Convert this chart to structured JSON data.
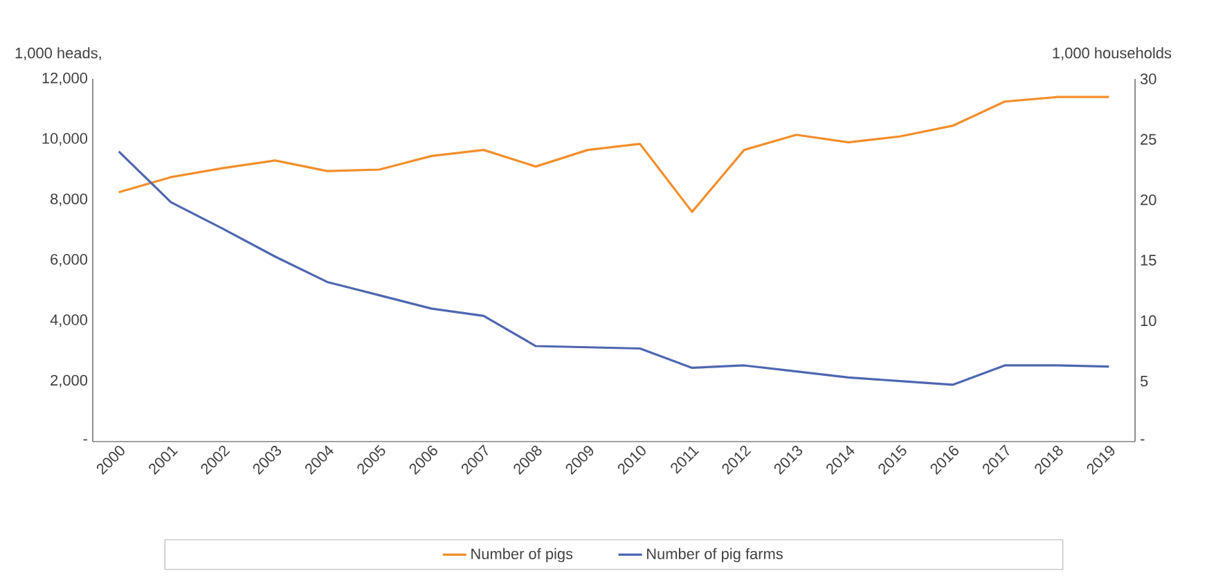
{
  "chart_data": {
    "type": "line",
    "categories": [
      "2000",
      "2001",
      "2002",
      "2003",
      "2004",
      "2005",
      "2006",
      "2007",
      "2008",
      "2009",
      "2010",
      "2011",
      "2012",
      "2013",
      "2014",
      "2015",
      "2016",
      "2017",
      "2018",
      "2019"
    ],
    "ylabel": "1,000 heads,",
    "y2label": "1,000 households",
    "series": [
      {
        "name": "Number of pigs",
        "color": "#f28e2b",
        "values": [
          8250,
          8750,
          9050,
          9300,
          8950,
          9000,
          9450,
          9650,
          9100,
          9650,
          9850,
          7600,
          9650,
          10150,
          9900,
          10100,
          10450,
          11250,
          11400,
          11400
        ]
      },
      {
        "name": "Number of pig farms",
        "color": "#4e66b0",
        "axis": "y2",
        "values": [
          24.0,
          19.8,
          17.6,
          15.3,
          13.2,
          12.1,
          11.0,
          10.4,
          7.9,
          7.8,
          7.7,
          6.1,
          6.3,
          5.8,
          5.3,
          5.0,
          4.7,
          6.3,
          6.3,
          6.2
        ]
      }
    ],
    "ylim": [
      0,
      12000
    ],
    "yticks": [
      {
        "value": 0,
        "label": "-"
      },
      {
        "value": 2000,
        "label": "2,000"
      },
      {
        "value": 4000,
        "label": "4,000"
      },
      {
        "value": 6000,
        "label": "6,000"
      },
      {
        "value": 8000,
        "label": "8,000"
      },
      {
        "value": 10000,
        "label": "10,000"
      },
      {
        "value": 12000,
        "label": "12,000"
      }
    ],
    "y2lim": [
      0,
      30
    ],
    "y2ticks": [
      {
        "value": 0,
        "label": "-"
      },
      5,
      10,
      15,
      20,
      25,
      30
    ],
    "grid": false,
    "legend": "bottom",
    "marker": "none",
    "line_style": "solid"
  }
}
